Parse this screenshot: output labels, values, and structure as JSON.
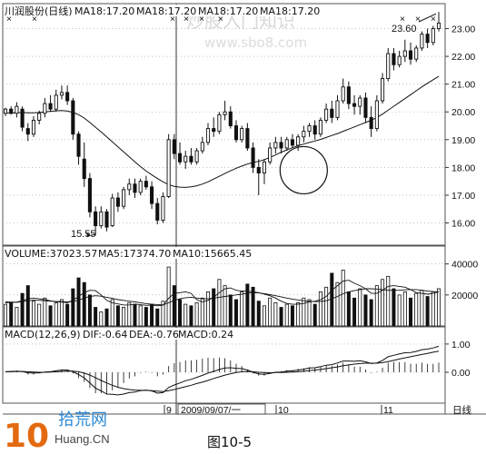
{
  "chart_data": [
    {
      "type": "candlestick",
      "panel": "price",
      "title": "川润股份(日线)",
      "ma_labels": [
        "MA18:17.20",
        "MA18:17.20",
        "MA18:17.20",
        "MA18:17.20"
      ],
      "yticks": [
        16.0,
        17.0,
        18.0,
        19.0,
        20.0,
        21.0,
        22.0,
        23.0
      ],
      "ylim": [
        15.2,
        23.9
      ],
      "grid": true,
      "candles": [
        [
          19.95,
          20.15,
          19.85,
          20.1
        ],
        [
          20.1,
          20.2,
          19.9,
          19.95
        ],
        [
          19.95,
          20.35,
          19.8,
          20.2
        ],
        [
          20.1,
          20.2,
          19.3,
          19.45
        ],
        [
          19.4,
          19.6,
          18.95,
          19.2
        ],
        [
          19.2,
          19.85,
          19.1,
          19.7
        ],
        [
          19.7,
          20.05,
          19.55,
          19.95
        ],
        [
          19.95,
          20.5,
          19.8,
          20.3
        ],
        [
          20.3,
          20.6,
          20.0,
          20.1
        ],
        [
          20.1,
          20.8,
          20.0,
          20.6
        ],
        [
          20.6,
          20.95,
          20.45,
          20.7
        ],
        [
          20.7,
          20.95,
          20.25,
          20.4
        ],
        [
          20.4,
          20.5,
          19.0,
          19.2
        ],
        [
          19.2,
          19.3,
          18.1,
          18.4
        ],
        [
          18.3,
          18.9,
          17.3,
          17.6
        ],
        [
          17.6,
          17.8,
          16.2,
          16.4
        ],
        [
          16.4,
          16.6,
          15.55,
          15.9
        ],
        [
          15.9,
          16.6,
          15.8,
          16.4
        ],
        [
          16.4,
          16.5,
          15.7,
          15.85
        ],
        [
          15.9,
          17.05,
          15.85,
          16.9
        ],
        [
          16.9,
          17.1,
          16.4,
          16.6
        ],
        [
          16.6,
          17.3,
          16.5,
          17.2
        ],
        [
          17.2,
          17.6,
          17.0,
          17.4
        ],
        [
          17.4,
          17.6,
          16.9,
          17.1
        ],
        [
          17.1,
          17.6,
          17.0,
          17.5
        ],
        [
          17.5,
          17.7,
          17.2,
          17.3
        ],
        [
          17.3,
          17.5,
          16.5,
          16.7
        ],
        [
          16.7,
          16.9,
          15.95,
          16.1
        ],
        [
          16.1,
          17.1,
          16.0,
          16.95
        ],
        [
          16.95,
          19.2,
          16.9,
          19.0
        ],
        [
          19.0,
          19.2,
          18.3,
          18.5
        ],
        [
          18.5,
          18.9,
          18.1,
          18.2
        ],
        [
          18.2,
          18.6,
          17.95,
          18.4
        ],
        [
          18.4,
          18.7,
          18.1,
          18.2
        ],
        [
          18.2,
          18.7,
          18.1,
          18.6
        ],
        [
          18.6,
          19.1,
          18.5,
          18.9
        ],
        [
          18.9,
          19.6,
          18.8,
          19.4
        ],
        [
          19.4,
          19.8,
          19.1,
          19.3
        ],
        [
          19.3,
          20.0,
          19.2,
          19.9
        ],
        [
          19.9,
          20.4,
          19.7,
          20.0
        ],
        [
          20.0,
          20.2,
          19.4,
          19.5
        ],
        [
          19.5,
          19.7,
          18.9,
          19.0
        ],
        [
          19.0,
          19.5,
          18.9,
          19.4
        ],
        [
          19.4,
          19.6,
          18.6,
          18.7
        ],
        [
          18.7,
          18.9,
          17.8,
          18.0
        ],
        [
          18.0,
          18.3,
          17.0,
          17.8
        ],
        [
          17.8,
          18.3,
          17.4,
          18.2
        ],
        [
          18.2,
          18.9,
          18.1,
          18.7
        ],
        [
          18.7,
          19.1,
          18.5,
          18.9
        ],
        [
          18.9,
          19.1,
          18.5,
          18.7
        ],
        [
          18.7,
          19.1,
          18.6,
          19.0
        ],
        [
          19.0,
          19.2,
          18.7,
          18.8
        ],
        [
          18.8,
          19.2,
          18.6,
          19.1
        ],
        [
          19.1,
          19.5,
          18.9,
          19.3
        ],
        [
          19.3,
          19.6,
          19.1,
          19.5
        ],
        [
          19.5,
          19.7,
          19.0,
          19.2
        ],
        [
          19.2,
          19.8,
          19.1,
          19.7
        ],
        [
          19.7,
          20.3,
          19.6,
          20.1
        ],
        [
          20.1,
          20.4,
          19.6,
          19.8
        ],
        [
          19.8,
          20.6,
          19.7,
          20.4
        ],
        [
          20.4,
          21.2,
          20.3,
          20.9
        ],
        [
          20.9,
          21.1,
          20.1,
          20.3
        ],
        [
          20.3,
          20.6,
          19.9,
          20.2
        ],
        [
          20.2,
          20.6,
          19.9,
          20.5
        ],
        [
          20.5,
          20.7,
          19.6,
          19.8
        ],
        [
          19.8,
          20.2,
          19.1,
          19.4
        ],
        [
          19.4,
          20.6,
          19.3,
          20.4
        ],
        [
          20.4,
          21.4,
          20.3,
          21.2
        ],
        [
          21.2,
          22.3,
          21.1,
          22.1
        ],
        [
          22.1,
          22.3,
          21.5,
          21.7
        ],
        [
          21.7,
          22.2,
          21.6,
          22.0
        ],
        [
          22.0,
          22.6,
          21.8,
          22.2
        ],
        [
          22.2,
          22.5,
          21.7,
          21.9
        ],
        [
          21.9,
          22.4,
          21.8,
          22.3
        ],
        [
          22.3,
          22.9,
          22.2,
          22.8
        ],
        [
          22.8,
          23.0,
          22.3,
          22.5
        ],
        [
          22.5,
          23.1,
          22.4,
          23.0
        ],
        [
          23.0,
          23.6,
          22.9,
          23.2
        ]
      ],
      "ma": [
        19.95,
        19.96,
        19.97,
        19.98,
        19.97,
        19.97,
        19.98,
        20.0,
        20.02,
        20.04,
        20.05,
        20.03,
        19.98,
        19.9,
        19.78,
        19.62,
        19.45,
        19.28,
        19.1,
        18.92,
        18.74,
        18.56,
        18.38,
        18.2,
        18.03,
        17.87,
        17.73,
        17.6,
        17.48,
        17.38,
        17.32,
        17.29,
        17.28,
        17.3,
        17.34,
        17.4,
        17.48,
        17.58,
        17.68,
        17.78,
        17.88,
        17.97,
        18.05,
        18.12,
        18.18,
        18.22,
        18.28,
        18.36,
        18.45,
        18.55,
        18.63,
        18.71,
        18.78,
        18.84,
        18.9,
        18.95,
        19.01,
        19.08,
        19.15,
        19.22,
        19.3,
        19.38,
        19.46,
        19.54,
        19.62,
        19.7,
        19.8,
        19.92,
        20.06,
        20.2,
        20.34,
        20.48,
        20.62,
        20.76,
        20.9,
        21.03,
        21.16,
        21.28
      ],
      "annotations": [
        "15.55",
        "23.60"
      ],
      "circle_center": [
        53,
        17.9
      ]
    },
    {
      "type": "bar",
      "panel": "volume",
      "title": "VOLUME:37023.57",
      "ma_labels": [
        "MA5:17374.70",
        "MA10:15665.45"
      ],
      "yticks": [
        20000,
        40000
      ],
      "ylim": [
        0,
        48000
      ],
      "values": [
        14000,
        15000,
        12000,
        21000,
        26000,
        16000,
        14000,
        18000,
        13000,
        15000,
        17000,
        14000,
        24000,
        31000,
        28000,
        20000,
        12000,
        9000,
        11000,
        17000,
        13000,
        12000,
        15000,
        14000,
        13000,
        12000,
        14000,
        11000,
        16000,
        38000,
        26000,
        17000,
        14000,
        13000,
        15000,
        18000,
        22000,
        24000,
        30000,
        26000,
        20000,
        17000,
        22000,
        27000,
        25000,
        16000,
        13000,
        18000,
        15000,
        12000,
        14000,
        13000,
        15000,
        18000,
        17000,
        14000,
        22000,
        25000,
        34000,
        28000,
        36000,
        22000,
        18000,
        24000,
        20000,
        17000,
        26000,
        30000,
        32000,
        24000,
        20000,
        22000,
        18000,
        21000,
        23000,
        19000,
        22000,
        24000
      ],
      "ma5": [
        15000,
        15200,
        15400,
        16200,
        17600,
        18000,
        17500,
        17000,
        16200,
        15600,
        15400,
        15000,
        16500,
        19000,
        21500,
        23000,
        22800,
        20000,
        16500,
        15000,
        14200,
        13500,
        13600,
        14100,
        13700,
        13300,
        13500,
        13000,
        13400,
        17800,
        21000,
        21500,
        22000,
        21000,
        17000,
        15500,
        16500,
        18500,
        21500,
        24000,
        24500,
        23000,
        22500,
        22500,
        22000,
        21500,
        20500,
        19500,
        18000,
        16000,
        14500,
        14000,
        14000,
        14500,
        15500,
        16000,
        17000,
        19000,
        23000,
        26000,
        29000,
        29500,
        27500,
        26000,
        24000,
        21000,
        21000,
        23000,
        25500,
        26000,
        25500,
        25000,
        23500,
        21500,
        21000,
        20500,
        21000,
        22000
      ],
      "ma10": [
        15500,
        15400,
        15300,
        15700,
        16300,
        16600,
        16500,
        16300,
        16000,
        15800,
        15700,
        15500,
        15800,
        16700,
        18000,
        19000,
        19500,
        19200,
        18500,
        17800,
        17000,
        16500,
        16000,
        15500,
        15000,
        14400,
        14000,
        13800,
        13600,
        15000,
        16500,
        17500,
        18200,
        18500,
        18000,
        17500,
        17500,
        18000,
        18500,
        19000,
        19500,
        20000,
        20500,
        21200,
        21500,
        21300,
        20800,
        20200,
        19500,
        18800,
        18000,
        17300,
        16800,
        16300,
        16000,
        15700,
        15800,
        16300,
        17500,
        19000,
        20800,
        22000,
        22800,
        23500,
        24000,
        24000,
        23800,
        23500,
        23000,
        23000,
        23000,
        23300,
        23500,
        23500,
        23000,
        22500,
        22200,
        22000
      ]
    },
    {
      "type": "macd",
      "panel": "macd",
      "title": "MACD(12,26,9)",
      "labels": [
        "DIF:-0.64",
        "DEA:-0.76",
        "MACD:0.24"
      ],
      "yticks": [
        0.0,
        1.0
      ],
      "ylim": [
        -1.35,
        1.35
      ],
      "dif": [
        0.02,
        0.03,
        0.04,
        0.03,
        -0.02,
        -0.03,
        -0.02,
        0.01,
        0.02,
        0.05,
        0.08,
        0.08,
        0.02,
        -0.08,
        -0.2,
        -0.38,
        -0.56,
        -0.66,
        -0.77,
        -0.78,
        -0.8,
        -0.77,
        -0.72,
        -0.7,
        -0.65,
        -0.63,
        -0.66,
        -0.74,
        -0.72,
        -0.54,
        -0.45,
        -0.38,
        -0.3,
        -0.25,
        -0.18,
        -0.11,
        -0.03,
        0.03,
        0.1,
        0.15,
        0.16,
        0.14,
        0.13,
        0.08,
        0.0,
        -0.06,
        -0.07,
        -0.04,
        0.0,
        0.01,
        0.04,
        0.05,
        0.08,
        0.11,
        0.15,
        0.16,
        0.2,
        0.25,
        0.27,
        0.33,
        0.4,
        0.4,
        0.39,
        0.41,
        0.37,
        0.31,
        0.33,
        0.42,
        0.55,
        0.6,
        0.65,
        0.69,
        0.7,
        0.74,
        0.8,
        0.82,
        0.86,
        0.92
      ],
      "dea": [
        0.02,
        0.02,
        0.03,
        0.03,
        0.02,
        0.01,
        0.0,
        0.0,
        0.01,
        0.02,
        0.03,
        0.04,
        0.04,
        0.02,
        -0.03,
        -0.1,
        -0.19,
        -0.29,
        -0.38,
        -0.46,
        -0.53,
        -0.58,
        -0.61,
        -0.63,
        -0.64,
        -0.64,
        -0.65,
        -0.67,
        -0.68,
        -0.65,
        -0.61,
        -0.56,
        -0.51,
        -0.46,
        -0.4,
        -0.35,
        -0.29,
        -0.22,
        -0.16,
        -0.1,
        -0.05,
        -0.01,
        0.02,
        0.03,
        0.02,
        0.0,
        -0.01,
        -0.02,
        -0.01,
        -0.01,
        0.0,
        0.01,
        0.02,
        0.04,
        0.06,
        0.08,
        0.1,
        0.13,
        0.16,
        0.19,
        0.23,
        0.26,
        0.29,
        0.31,
        0.32,
        0.32,
        0.32,
        0.34,
        0.38,
        0.42,
        0.47,
        0.51,
        0.55,
        0.59,
        0.63,
        0.67,
        0.71,
        0.75
      ],
      "hist": [
        0.0,
        0.02,
        0.02,
        0.0,
        -0.08,
        -0.08,
        -0.04,
        0.02,
        0.02,
        0.06,
        0.1,
        0.08,
        -0.04,
        -0.2,
        -0.34,
        -0.56,
        -0.74,
        -0.74,
        -0.78,
        -0.64,
        -0.54,
        -0.38,
        -0.22,
        -0.14,
        -0.02,
        0.02,
        -0.02,
        -0.14,
        -0.08,
        0.22,
        0.32,
        0.36,
        0.42,
        0.42,
        0.44,
        0.48,
        0.52,
        0.5,
        0.52,
        0.5,
        0.42,
        0.3,
        0.22,
        0.1,
        -0.04,
        -0.12,
        -0.12,
        -0.04,
        0.02,
        0.04,
        0.08,
        0.08,
        0.12,
        0.14,
        0.18,
        0.16,
        0.2,
        0.24,
        0.22,
        0.28,
        0.34,
        0.28,
        0.2,
        0.2,
        0.1,
        -0.02,
        0.02,
        0.16,
        0.34,
        0.36,
        0.36,
        0.36,
        0.3,
        0.3,
        0.34,
        0.3,
        0.3,
        0.34
      ]
    }
  ],
  "date_axis": {
    "labels": [
      "9",
      "2009/09/07/一",
      "10",
      "11",
      "日线"
    ]
  },
  "watermark": {
    "line1": "炒股入门知识",
    "line2": "www.sbo8.com"
  },
  "logo": {
    "number": "10",
    "name": "拾荒网",
    "url": "Huang.CN"
  },
  "caption": "图10-5",
  "colors": {
    "up": "#ffffff",
    "down": "#111111",
    "line": "#111111",
    "grid": "#9a9a9a"
  }
}
